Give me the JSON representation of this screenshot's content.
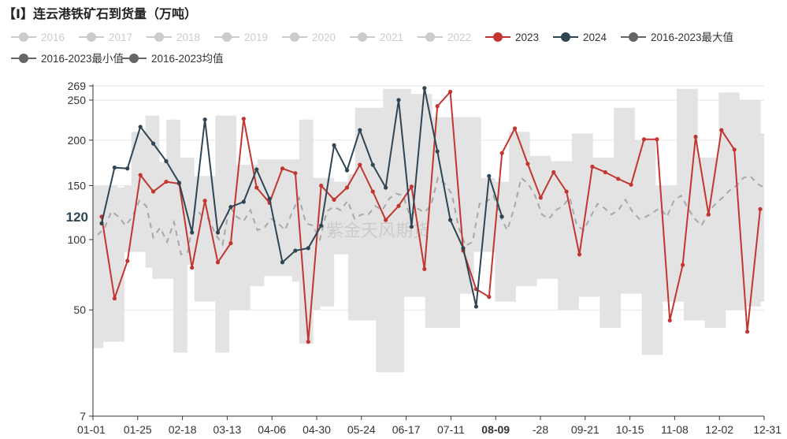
{
  "title": "【I】连云港铁矿石到货量（万吨）",
  "watermark": "紫金天风期货",
  "colors": {
    "band": "#e3e3e3",
    "avg": "#a8a8a8",
    "y2023": "#c23531",
    "y2024": "#2f4554",
    "legend_inactive": "#cccccc",
    "legend_stat": "#666666",
    "axis": "#333333",
    "grid": "#e6e6e6"
  },
  "legend": [
    {
      "label": "2016",
      "active": false
    },
    {
      "label": "2017",
      "active": false
    },
    {
      "label": "2018",
      "active": false
    },
    {
      "label": "2019",
      "active": false
    },
    {
      "label": "2020",
      "active": false
    },
    {
      "label": "2021",
      "active": false
    },
    {
      "label": "2022",
      "active": false
    },
    {
      "label": "2023",
      "active": true,
      "color": "#c23531"
    },
    {
      "label": "2024",
      "active": true,
      "color": "#2f4554"
    },
    {
      "label": "2016-2023最大值",
      "active": true,
      "color": "#666666"
    },
    {
      "label": "2016-2023最小值",
      "active": true,
      "color": "#666666"
    },
    {
      "label": "2016-2023均值",
      "active": true,
      "color": "#666666"
    }
  ],
  "chart_data": {
    "type": "line",
    "xlabel": "",
    "ylabel": "",
    "ylim": [
      7,
      269
    ],
    "y_scale": "sqrt",
    "y_ticks": [
      7,
      50,
      100,
      150,
      200,
      250,
      269
    ],
    "x_tick_labels": [
      "01-01",
      "01-25",
      "02-18",
      "03-13",
      "04-06",
      "04-30",
      "05-24",
      "06-17",
      "07-11",
      "08-09",
      "-28",
      "09-21",
      "10-15",
      "11-08",
      "12-02",
      "12-31"
    ],
    "tooltip": {
      "x": "08-09",
      "y": "120"
    },
    "grid": true,
    "band_max": [
      150,
      150,
      150,
      150,
      148,
      150,
      210,
      210,
      230,
      230,
      175,
      225,
      225,
      180,
      180,
      160,
      160,
      160,
      230,
      230,
      230,
      172,
      172,
      172,
      178,
      178,
      178,
      178,
      178,
      178,
      225,
      225,
      158,
      158,
      158,
      154,
      154,
      162,
      240,
      240,
      240,
      240,
      265,
      265,
      265,
      265,
      258,
      258,
      258,
      228,
      228,
      228,
      228,
      228,
      228,
      228,
      158,
      158,
      154,
      154,
      210,
      210,
      210,
      182,
      182,
      182,
      176,
      176,
      176,
      208,
      208,
      208,
      180,
      180,
      180,
      240,
      240,
      240,
      200,
      200,
      200,
      150,
      150,
      150,
      265,
      265,
      265,
      180,
      180,
      180,
      260,
      260,
      260,
      250,
      250,
      250,
      208
    ],
    "band_min": [
      30,
      30,
      33,
      33,
      33,
      90,
      90,
      90,
      78,
      70,
      70,
      70,
      28,
      28,
      80,
      55,
      55,
      55,
      28,
      28,
      50,
      50,
      50,
      65,
      65,
      72,
      72,
      72,
      72,
      68,
      32,
      32,
      50,
      52,
      52,
      88,
      88,
      44,
      44,
      44,
      44,
      20,
      20,
      20,
      20,
      58,
      58,
      58,
      40,
      40,
      40,
      40,
      40,
      60,
      60,
      90,
      90,
      90,
      55,
      55,
      55,
      65,
      65,
      65,
      70,
      70,
      70,
      50,
      50,
      50,
      58,
      58,
      58,
      40,
      40,
      40,
      60,
      60,
      60,
      27,
      27,
      27,
      55,
      55,
      55,
      44,
      44,
      44,
      40,
      40,
      40,
      50,
      50,
      50,
      52,
      52,
      55
    ],
    "avg_series": [
      104,
      110,
      125,
      120,
      112,
      120,
      135,
      130,
      102,
      110,
      98,
      115,
      88,
      90,
      128,
      121,
      118,
      104,
      96,
      130,
      120,
      116,
      126,
      108,
      110,
      118,
      114,
      108,
      124,
      138,
      114,
      112,
      100,
      125,
      129,
      126,
      135,
      118,
      122,
      122,
      130,
      126,
      137,
      142,
      140,
      120,
      128,
      124,
      130,
      158,
      152,
      142,
      110,
      95,
      98,
      132,
      134,
      140,
      120,
      108,
      128,
      158,
      152,
      140,
      122,
      118,
      126,
      130,
      138,
      112,
      108,
      120,
      132,
      128,
      122,
      126,
      136,
      125,
      118,
      120,
      124,
      128,
      120,
      135,
      140,
      128,
      118,
      112,
      125,
      132,
      138,
      145,
      150,
      158,
      160,
      152,
      148
    ],
    "series": [
      {
        "name": "2023",
        "values": [
          120,
          57,
          83,
          161,
          144,
          154,
          152,
          78,
          135,
          82,
          97,
          226,
          148,
          133,
          168,
          163,
          33,
          150,
          136,
          148,
          172,
          144,
          117,
          130,
          149,
          77,
          242,
          261,
          91,
          63,
          58,
          185,
          214,
          173,
          138,
          164,
          144,
          88,
          170,
          164,
          157,
          151,
          201,
          201,
          44,
          80,
          204,
          122,
          212,
          189,
          38,
          127
        ]
      },
      {
        "name": "2024",
        "values": [
          114,
          169,
          168,
          216,
          196,
          176,
          153,
          106,
          225,
          106,
          129,
          134,
          167,
          137,
          82,
          91,
          93,
          112,
          194,
          166,
          212,
          172,
          148,
          250,
          111,
          266,
          187,
          117,
          93,
          52,
          160,
          120
        ]
      }
    ]
  }
}
